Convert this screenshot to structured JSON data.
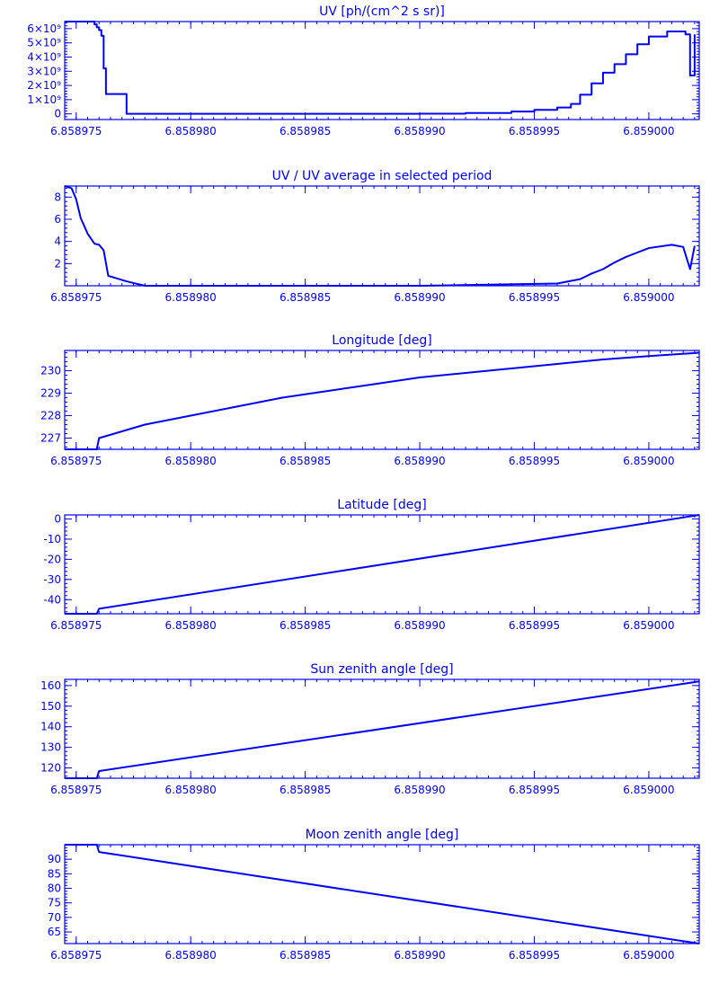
{
  "colors": {
    "line": "#0000ff",
    "background": "#ffffff"
  },
  "chart_data": [
    {
      "type": "line",
      "title": "UV [ph/(cm^2 s sr)]",
      "xlabel": "",
      "ylabel": "",
      "xlim": [
        6.8589745,
        6.8590022
      ],
      "ylim": [
        -400000000,
        6500000000
      ],
      "xticks": [
        6.858975,
        6.85898,
        6.858985,
        6.85899,
        6.858995,
        6.859
      ],
      "xtick_labels": [
        "6.858975",
        "6.858980",
        "6.858985",
        "6.858990",
        "6.858995",
        "6.859000"
      ],
      "yticks": [
        0,
        1000000000,
        2000000000,
        3000000000,
        4000000000,
        5000000000,
        6000000000
      ],
      "ytick_labels": [
        "0",
        "1×10⁹",
        "2×10⁹",
        "3×10⁹",
        "4×10⁹",
        "5×10⁹",
        "6×10⁹"
      ],
      "step": true,
      "series": [
        {
          "x": [
            6.8589745,
            6.8589758,
            6.8589759,
            6.858976,
            6.8589761,
            6.8589762,
            6.8589763,
            6.8589764,
            6.8589771,
            6.8589772,
            6.858978,
            6.858985,
            6.85899,
            6.858992,
            6.858994,
            6.858995,
            6.858996,
            6.8589966,
            6.858997,
            6.8589975,
            6.858998,
            6.8589985,
            6.858999,
            6.8589995,
            6.859,
            6.8590008,
            6.8590013,
            6.8590016,
            6.8590018,
            6.859002
          ],
          "y": [
            6500000000,
            6300000000,
            6100000000,
            5900000000,
            5500000000,
            3200000000,
            1400000000,
            1400000000,
            1400000000,
            0,
            0,
            0,
            10000000,
            60000000,
            160000000,
            280000000,
            450000000,
            700000000,
            1350000000,
            2150000000,
            2900000000,
            3500000000,
            4200000000,
            4900000000,
            5450000000,
            5800000000,
            5800000000,
            5600000000,
            2700000000,
            5600000000
          ]
        }
      ]
    },
    {
      "type": "line",
      "title": "UV / UV average in selected period",
      "xlabel": "",
      "ylabel": "",
      "xlim": [
        6.8589745,
        6.8590022
      ],
      "ylim": [
        0,
        9
      ],
      "xticks": [
        6.858975,
        6.85898,
        6.858985,
        6.85899,
        6.858995,
        6.859
      ],
      "xtick_labels": [
        "6.858975",
        "6.858980",
        "6.858985",
        "6.858990",
        "6.858995",
        "6.859000"
      ],
      "yticks": [
        2,
        4,
        6,
        8
      ],
      "ytick_labels": [
        "2",
        "4",
        "6",
        "8"
      ],
      "step": false,
      "series": [
        {
          "x": [
            6.8589745,
            6.8589748,
            6.858975,
            6.8589752,
            6.8589755,
            6.8589758,
            6.858976,
            6.8589762,
            6.8589764,
            6.8589772,
            6.858978,
            6.858985,
            6.85899,
            6.858993,
            6.858996,
            6.858997,
            6.8589975,
            6.858998,
            6.8589985,
            6.858999,
            6.8589995,
            6.859,
            6.859001,
            6.8590015,
            6.8590018,
            6.859002
          ],
          "y": [
            9.0,
            8.8,
            7.8,
            6.1,
            4.7,
            3.8,
            3.7,
            3.2,
            0.9,
            0.4,
            0.0,
            0.0,
            0.0,
            0.1,
            0.2,
            0.6,
            1.1,
            1.5,
            2.1,
            2.6,
            3.0,
            3.4,
            3.7,
            3.5,
            1.5,
            3.6
          ]
        }
      ]
    },
    {
      "type": "line",
      "title": "Longitude [deg]",
      "xlabel": "",
      "ylabel": "",
      "xlim": [
        6.8589745,
        6.8590022
      ],
      "ylim": [
        226.5,
        230.9
      ],
      "xticks": [
        6.858975,
        6.85898,
        6.858985,
        6.85899,
        6.858995,
        6.859
      ],
      "xtick_labels": [
        "6.858975",
        "6.858980",
        "6.858985",
        "6.858990",
        "6.858995",
        "6.859000"
      ],
      "yticks": [
        227,
        228,
        229,
        230
      ],
      "ytick_labels": [
        "227",
        "228",
        "229",
        "230"
      ],
      "step": false,
      "series": [
        {
          "x": [
            6.8589745,
            6.8589759,
            6.858976,
            6.858978,
            6.85898,
            6.858982,
            6.858984,
            6.858986,
            6.858988,
            6.85899,
            6.858992,
            6.858994,
            6.858996,
            6.858998,
            6.859,
            6.8590022
          ],
          "y": [
            226.5,
            226.5,
            227.0,
            227.6,
            228.0,
            228.4,
            228.8,
            229.1,
            229.4,
            229.7,
            229.9,
            230.1,
            230.3,
            230.5,
            230.65,
            230.8
          ]
        }
      ]
    },
    {
      "type": "line",
      "title": "Latitude [deg]",
      "xlabel": "",
      "ylabel": "",
      "xlim": [
        6.8589745,
        6.8590022
      ],
      "ylim": [
        -47,
        2
      ],
      "xticks": [
        6.858975,
        6.85898,
        6.858985,
        6.85899,
        6.858995,
        6.859
      ],
      "xtick_labels": [
        "6.858975",
        "6.858980",
        "6.858985",
        "6.858990",
        "6.858995",
        "6.859000"
      ],
      "yticks": [
        -40,
        -30,
        -20,
        -10,
        0
      ],
      "ytick_labels": [
        "-40",
        "-30",
        "-20",
        "-10",
        "0"
      ],
      "step": false,
      "series": [
        {
          "x": [
            6.8589745,
            6.8589759,
            6.858976,
            6.8590022
          ],
          "y": [
            -47,
            -47,
            -44.5,
            2
          ]
        }
      ]
    },
    {
      "type": "line",
      "title": "Sun zenith angle [deg]",
      "xlabel": "",
      "ylabel": "",
      "xlim": [
        6.8589745,
        6.8590022
      ],
      "ylim": [
        115,
        163
      ],
      "xticks": [
        6.858975,
        6.85898,
        6.858985,
        6.85899,
        6.858995,
        6.859
      ],
      "xtick_labels": [
        "6.858975",
        "6.858980",
        "6.858985",
        "6.858990",
        "6.858995",
        "6.859000"
      ],
      "yticks": [
        120,
        130,
        140,
        150,
        160
      ],
      "ytick_labels": [
        "120",
        "130",
        "140",
        "150",
        "160"
      ],
      "step": false,
      "series": [
        {
          "x": [
            6.8589745,
            6.8589759,
            6.858976,
            6.8590022
          ],
          "y": [
            115,
            115,
            118.5,
            162
          ]
        }
      ]
    },
    {
      "type": "line",
      "title": "Moon zenith angle [deg]",
      "xlabel": "",
      "ylabel": "",
      "xlim": [
        6.8589745,
        6.8590022
      ],
      "ylim": [
        61,
        95
      ],
      "xticks": [
        6.858975,
        6.85898,
        6.858985,
        6.85899,
        6.858995,
        6.859
      ],
      "xtick_labels": [
        "6.858975",
        "6.858980",
        "6.858985",
        "6.858990",
        "6.858995",
        "6.859000"
      ],
      "yticks": [
        65,
        70,
        75,
        80,
        85,
        90
      ],
      "ytick_labels": [
        "65",
        "70",
        "75",
        "80",
        "85",
        "90"
      ],
      "step": false,
      "series": [
        {
          "x": [
            6.8589745,
            6.8589759,
            6.858976,
            6.8590022
          ],
          "y": [
            95,
            95,
            92.5,
            61
          ]
        }
      ]
    }
  ]
}
